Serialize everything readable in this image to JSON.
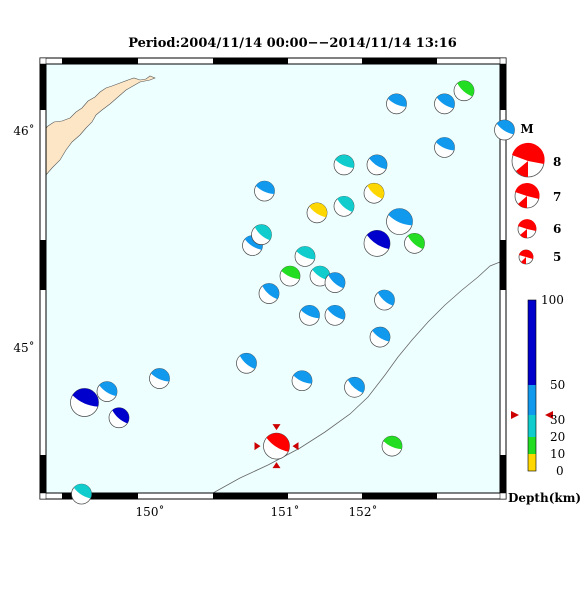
{
  "title": "Period:2004/11/14 00:00−−2014/11/14 13:16",
  "axes": {
    "x_ticks": [
      "150˚",
      "151˚",
      "152˚"
    ],
    "y_ticks": [
      "46˚",
      "45˚"
    ]
  },
  "colors": {
    "ocean": "#eeffff",
    "land": "#fde6c6",
    "main_event": "#ff0000",
    "depth_0_10": "#ffd700",
    "depth_10_20": "#22dd22",
    "depth_20_30": "#11cccc",
    "depth_30_50": "#1199ee",
    "depth_50_100": "#0000cc"
  },
  "magnitude_legend": {
    "title": "M",
    "items": [
      "8",
      "7",
      "6",
      "5"
    ]
  },
  "depth_colorbar": {
    "label": "Depth(km)",
    "ticks": [
      "100",
      "50",
      "30",
      "20",
      "10",
      "0"
    ]
  },
  "events": [
    {
      "lon": 150.05,
      "lat": 44.75,
      "depth_class": "deep",
      "size": "large"
    },
    {
      "lon": 150.2,
      "lat": 44.8,
      "depth_class": "mid",
      "size": "small"
    },
    {
      "lon": 150.28,
      "lat": 44.68,
      "depth_class": "deep",
      "size": "small"
    },
    {
      "lon": 150.55,
      "lat": 44.86,
      "depth_class": "mid",
      "size": "small"
    },
    {
      "lon": 150.03,
      "lat": 44.33,
      "depth_class": "shallow-mid",
      "size": "small"
    },
    {
      "lon": 151.13,
      "lat": 44.93,
      "depth_class": "mid",
      "size": "small"
    },
    {
      "lon": 151.5,
      "lat": 44.85,
      "depth_class": "mid",
      "size": "small"
    },
    {
      "lon": 151.33,
      "lat": 44.55,
      "depth_class": "main",
      "size": "medium"
    },
    {
      "lon": 151.85,
      "lat": 44.82,
      "depth_class": "mid",
      "size": "small"
    },
    {
      "lon": 152.1,
      "lat": 44.55,
      "depth_class": "green",
      "size": "small"
    },
    {
      "lon": 152.02,
      "lat": 45.05,
      "depth_class": "mid",
      "size": "small"
    },
    {
      "lon": 152.05,
      "lat": 45.22,
      "depth_class": "mid",
      "size": "small"
    },
    {
      "lon": 151.55,
      "lat": 45.15,
      "depth_class": "mid",
      "size": "small"
    },
    {
      "lon": 151.72,
      "lat": 45.15,
      "depth_class": "mid",
      "size": "small"
    },
    {
      "lon": 151.28,
      "lat": 45.25,
      "depth_class": "mid",
      "size": "small"
    },
    {
      "lon": 151.42,
      "lat": 45.33,
      "depth_class": "green",
      "size": "small"
    },
    {
      "lon": 151.62,
      "lat": 45.33,
      "depth_class": "cyan",
      "size": "small"
    },
    {
      "lon": 151.72,
      "lat": 45.3,
      "depth_class": "mid",
      "size": "small"
    },
    {
      "lon": 151.52,
      "lat": 45.42,
      "depth_class": "cyan",
      "size": "small"
    },
    {
      "lon": 151.17,
      "lat": 45.47,
      "depth_class": "mid",
      "size": "small"
    },
    {
      "lon": 151.23,
      "lat": 45.52,
      "depth_class": "cyan",
      "size": "small"
    },
    {
      "lon": 151.25,
      "lat": 45.72,
      "depth_class": "mid",
      "size": "small"
    },
    {
      "lon": 151.6,
      "lat": 45.62,
      "depth_class": "yellow",
      "size": "small"
    },
    {
      "lon": 151.78,
      "lat": 45.65,
      "depth_class": "cyan",
      "size": "small"
    },
    {
      "lon": 151.78,
      "lat": 45.84,
      "depth_class": "cyan",
      "size": "small"
    },
    {
      "lon": 152.0,
      "lat": 45.84,
      "depth_class": "mid",
      "size": "small"
    },
    {
      "lon": 151.98,
      "lat": 45.71,
      "depth_class": "yellow",
      "size": "small"
    },
    {
      "lon": 152.15,
      "lat": 45.58,
      "depth_class": "mid",
      "size": "medium"
    },
    {
      "lon": 152.0,
      "lat": 45.48,
      "depth_class": "deep",
      "size": "medium"
    },
    {
      "lon": 152.25,
      "lat": 45.48,
      "depth_class": "green",
      "size": "small"
    },
    {
      "lon": 152.13,
      "lat": 46.12,
      "depth_class": "mid",
      "size": "small"
    },
    {
      "lon": 152.45,
      "lat": 46.12,
      "depth_class": "mid",
      "size": "small"
    },
    {
      "lon": 152.58,
      "lat": 46.18,
      "depth_class": "green",
      "size": "small"
    },
    {
      "lon": 152.45,
      "lat": 45.92,
      "depth_class": "mid",
      "size": "small"
    },
    {
      "lon": 152.85,
      "lat": 46.0,
      "depth_class": "mid",
      "size": "small"
    }
  ]
}
